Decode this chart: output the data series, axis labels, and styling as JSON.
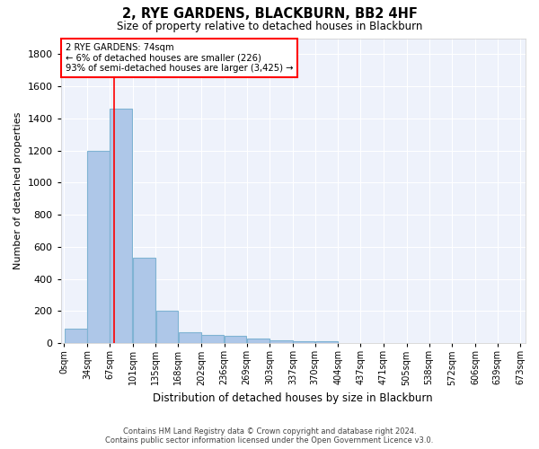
{
  "title": "2, RYE GARDENS, BLACKBURN, BB2 4HF",
  "subtitle": "Size of property relative to detached houses in Blackburn",
  "xlabel": "Distribution of detached houses by size in Blackburn",
  "ylabel": "Number of detached properties",
  "bar_labels": [
    "0sqm",
    "34sqm",
    "67sqm",
    "101sqm",
    "135sqm",
    "168sqm",
    "202sqm",
    "236sqm",
    "269sqm",
    "303sqm",
    "337sqm",
    "370sqm",
    "404sqm",
    "437sqm",
    "471sqm",
    "505sqm",
    "538sqm",
    "572sqm",
    "606sqm",
    "639sqm",
    "673sqm"
  ],
  "bar_heights": [
    90,
    1200,
    1460,
    535,
    205,
    70,
    50,
    45,
    30,
    20,
    15,
    10,
    0,
    0,
    0,
    0,
    0,
    0,
    0,
    0,
    0
  ],
  "bar_color": "#aec7e8",
  "bar_edge_color": "#7fb3d3",
  "ylim": [
    0,
    1900
  ],
  "yticks": [
    0,
    200,
    400,
    600,
    800,
    1000,
    1200,
    1400,
    1600,
    1800
  ],
  "red_line_x": 74,
  "annotation_title": "2 RYE GARDENS: 74sqm",
  "annotation_line1": "← 6% of detached houses are smaller (226)",
  "annotation_line2": "93% of semi-detached houses are larger (3,425) →",
  "footer_line1": "Contains HM Land Registry data © Crown copyright and database right 2024.",
  "footer_line2": "Contains public sector information licensed under the Open Government Licence v3.0.",
  "background_color": "#ffffff",
  "plot_background_color": "#eef2fb",
  "grid_color": "#ffffff",
  "bin_edges": [
    0,
    34,
    67,
    101,
    135,
    168,
    202,
    236,
    269,
    303,
    337,
    370,
    404,
    437,
    471,
    505,
    538,
    572,
    606,
    639,
    673
  ]
}
